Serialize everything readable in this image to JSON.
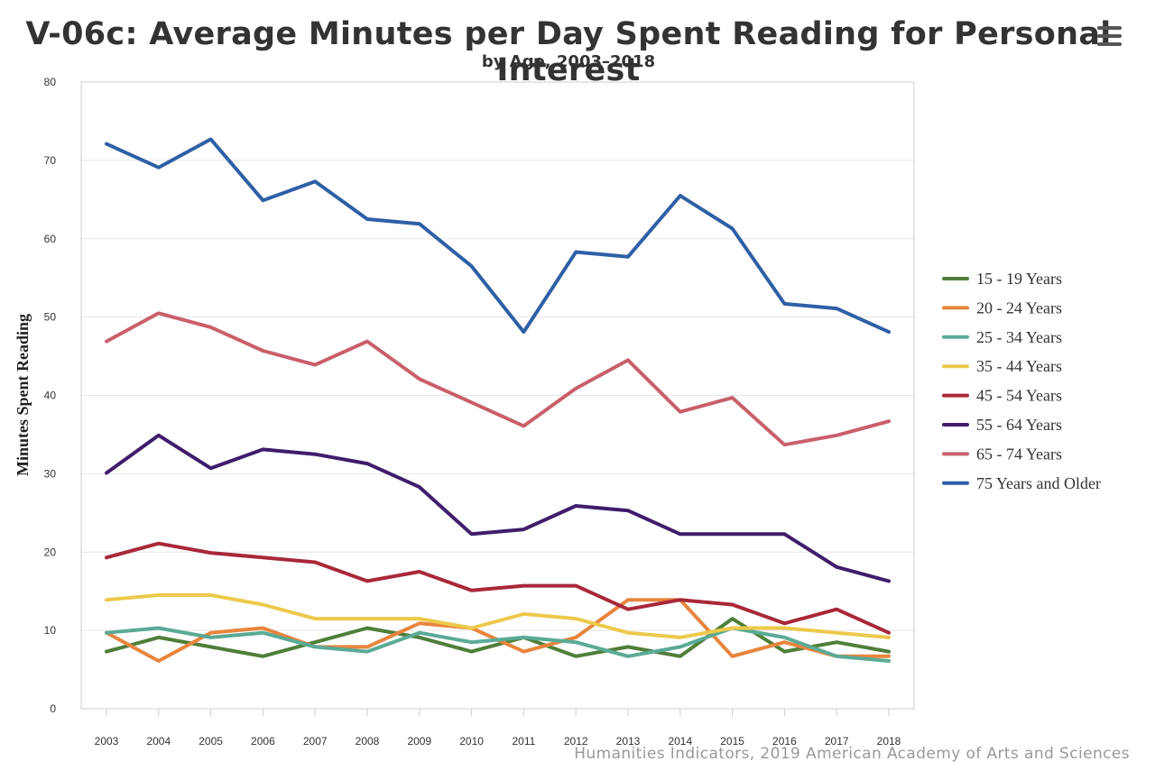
{
  "chart_data": {
    "type": "line",
    "title": "V-06c: Average Minutes per Day Spent Reading for Personal Interest",
    "subtitle": "by Age, 2003–2018",
    "ylabel": "Minutes Spent Reading",
    "xlabel": "",
    "ylim": [
      0,
      80
    ],
    "yticks": [
      0,
      10,
      20,
      30,
      40,
      50,
      60,
      70,
      80
    ],
    "grid": true,
    "legend_position": "right",
    "x": [
      "2003",
      "2004",
      "2005",
      "2006",
      "2007",
      "2008",
      "2009",
      "2010",
      "2011",
      "2012",
      "2013",
      "2014",
      "2015",
      "2016",
      "2017",
      "2018"
    ],
    "series": [
      {
        "name": "15 - 19 Years",
        "color": "#4f7e3a",
        "values": [
          7.3,
          9.1,
          7.9,
          6.7,
          8.5,
          10.3,
          9.1,
          7.3,
          9.1,
          6.7,
          7.9,
          6.7,
          11.5,
          7.3,
          8.5,
          7.3
        ]
      },
      {
        "name": "20 - 24 Years",
        "color": "#e8853d",
        "values": [
          9.7,
          6.1,
          9.7,
          10.3,
          7.9,
          7.9,
          10.9,
          10.3,
          7.3,
          9.1,
          13.9,
          13.9,
          6.7,
          8.5,
          6.7,
          6.7
        ]
      },
      {
        "name": "25 - 34 Years",
        "color": "#5aaa96",
        "values": [
          9.7,
          10.3,
          9.1,
          9.7,
          7.9,
          7.3,
          9.7,
          8.5,
          9.1,
          8.5,
          6.7,
          7.9,
          10.3,
          9.1,
          6.7,
          6.1
        ]
      },
      {
        "name": "35 - 44 Years",
        "color": "#ecc94b",
        "values": [
          13.9,
          14.5,
          14.5,
          13.3,
          11.5,
          11.5,
          11.5,
          10.3,
          12.1,
          11.5,
          9.7,
          9.1,
          10.3,
          10.3,
          9.7,
          9.1
        ]
      },
      {
        "name": "45 - 54 Years",
        "color": "#a8283a",
        "values": [
          19.3,
          21.1,
          19.9,
          19.3,
          18.7,
          16.3,
          17.5,
          15.1,
          15.7,
          15.7,
          12.7,
          13.9,
          13.3,
          10.9,
          12.7,
          9.7
        ]
      },
      {
        "name": "55 - 64 Years",
        "color": "#3f1d6b",
        "values": [
          30.1,
          34.9,
          30.7,
          33.1,
          32.5,
          31.3,
          28.3,
          22.3,
          22.9,
          25.9,
          25.3,
          22.3,
          22.3,
          22.3,
          18.1,
          16.3
        ]
      },
      {
        "name": "65 - 74 Years",
        "color": "#c95f6b",
        "values": [
          46.9,
          50.5,
          48.7,
          45.7,
          43.9,
          46.9,
          42.1,
          39.1,
          36.1,
          40.9,
          44.5,
          37.9,
          39.7,
          33.7,
          34.9,
          36.7
        ]
      },
      {
        "name": "75 Years and Older",
        "color": "#2f5fa5",
        "values": [
          72.1,
          69.1,
          72.7,
          64.9,
          67.3,
          62.5,
          61.9,
          56.5,
          48.1,
          58.3,
          57.7,
          65.5,
          61.3,
          51.7,
          51.1,
          48.1
        ]
      }
    ]
  },
  "credits": "Humanities Indicators, 2019 American Academy of Arts and Sciences",
  "menu_icon": "hamburger-menu-icon"
}
